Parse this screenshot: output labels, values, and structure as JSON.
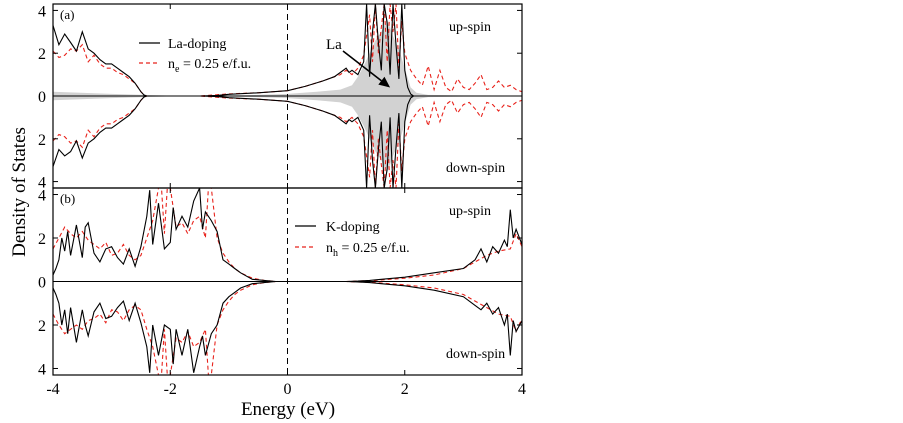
{
  "figure": {
    "ylabel": "Density of States",
    "xlabel": "Energy (eV)",
    "x_ticks": [
      "-4",
      "-2",
      "0",
      "2",
      "4"
    ],
    "fermi_level": 0
  },
  "chart_data": [
    {
      "type": "line",
      "panel_label": "(a)",
      "xlim": [
        -4,
        4
      ],
      "ylim": [
        -4.3,
        4.3
      ],
      "y_ticks": [
        {
          "value": 4,
          "label": "4"
        },
        {
          "value": 2,
          "label": "2"
        },
        {
          "value": 0,
          "label": "0"
        },
        {
          "value": -2,
          "label": "2"
        },
        {
          "value": -4,
          "label": "4"
        }
      ],
      "legend": [
        {
          "label": "La-doping",
          "style": "solid",
          "color": "#000000"
        },
        {
          "label_main": "n",
          "label_sub": "e",
          "label_rest": " = 0.25 e/f.u.",
          "style": "dashed",
          "color": "#e8231c"
        }
      ],
      "annotations": {
        "arrow_label": "La",
        "arrow_target": [
          1.75,
          0.4
        ],
        "top_right": "up-spin",
        "bottom_right": "down-spin"
      },
      "shaded_La_pdos": {
        "x": [
          -4.0,
          -3.0,
          -2.0,
          -1.0,
          -0.5,
          0.0,
          0.5,
          0.9,
          1.1,
          1.2,
          1.3,
          1.4,
          1.5,
          1.6,
          1.7,
          1.8,
          1.9,
          2.0,
          2.1,
          2.2,
          2.4,
          3.0,
          4.0
        ],
        "y": [
          0.2,
          0.1,
          0.02,
          0.03,
          0.05,
          0.1,
          0.2,
          0.3,
          0.5,
          0.9,
          1.4,
          2.0,
          2.6,
          3.0,
          3.6,
          2.8,
          2.2,
          1.3,
          0.4,
          0.15,
          0.05,
          0.03,
          0.02
        ]
      },
      "series": [
        {
          "name": "La-doping",
          "style": "solid",
          "color": "#000000",
          "x": [
            -4.0,
            -3.9,
            -3.8,
            -3.7,
            -3.6,
            -3.5,
            -3.4,
            -3.3,
            -3.2,
            -3.1,
            -3.0,
            -2.9,
            -2.8,
            -2.7,
            -2.6,
            -2.55,
            -2.5,
            -2.45,
            -2.4,
            -2.3,
            -2.0,
            -1.5,
            -1.2,
            -1.0,
            -0.5,
            0.0,
            0.3,
            0.6,
            0.8,
            0.9,
            1.0,
            1.05,
            1.1,
            1.2,
            1.3,
            1.35,
            1.4,
            1.45,
            1.5,
            1.55,
            1.6,
            1.65,
            1.7,
            1.75,
            1.8,
            1.85,
            1.9,
            1.95,
            2.0,
            2.05,
            2.1,
            2.15
          ],
          "up": [
            3.3,
            2.4,
            2.9,
            2.5,
            2.1,
            3.0,
            2.2,
            2.0,
            1.7,
            1.5,
            1.5,
            1.3,
            1.1,
            0.9,
            0.6,
            0.4,
            0.2,
            0.05,
            0.0,
            0.0,
            0.0,
            0.0,
            0.03,
            0.08,
            0.15,
            0.25,
            0.45,
            0.7,
            0.9,
            1.1,
            1.3,
            1.1,
            1.2,
            1.0,
            1.6,
            4.3,
            0.9,
            3.0,
            4.3,
            2.5,
            1.2,
            4.3,
            3.4,
            1.0,
            4.3,
            2.4,
            0.8,
            4.3,
            1.2,
            0.4,
            0.1,
            0.0
          ],
          "down": [
            3.3,
            2.5,
            2.8,
            2.6,
            2.1,
            2.9,
            2.2,
            2.0,
            1.7,
            1.5,
            1.5,
            1.3,
            1.1,
            0.9,
            0.6,
            0.4,
            0.2,
            0.05,
            0.0,
            0.0,
            0.0,
            0.0,
            0.03,
            0.08,
            0.15,
            0.25,
            0.45,
            0.7,
            0.9,
            1.1,
            1.3,
            1.1,
            1.2,
            1.0,
            1.6,
            4.3,
            0.9,
            3.0,
            4.3,
            2.5,
            1.2,
            4.3,
            3.4,
            1.0,
            4.3,
            2.4,
            0.8,
            4.3,
            1.2,
            0.4,
            0.1,
            0.0
          ]
        },
        {
          "name": "ne = 0.25 e/f.u.",
          "style": "dashed",
          "color": "#e8231c",
          "x": [
            -4.0,
            -3.9,
            -3.8,
            -3.7,
            -3.6,
            -3.5,
            -3.4,
            -3.3,
            -3.2,
            -3.1,
            -3.0,
            -2.9,
            -2.8,
            -2.7,
            -2.6,
            -2.55,
            -2.5,
            -2.45,
            -2.4,
            -2.0,
            -1.5,
            -1.0,
            -0.5,
            0.0,
            0.3,
            0.6,
            0.8,
            0.9,
            1.0,
            1.1,
            1.2,
            1.3,
            1.4,
            1.45,
            1.5,
            1.55,
            1.6,
            1.65,
            1.7,
            1.75,
            1.8,
            1.85,
            1.9,
            1.95,
            2.0,
            2.1,
            2.2,
            2.3,
            2.4,
            2.5,
            2.6,
            2.7,
            2.8,
            2.9,
            3.0,
            3.1,
            3.2,
            3.3,
            3.4,
            3.5,
            3.6,
            3.7,
            3.8,
            3.9,
            4.0
          ],
          "up": [
            2.1,
            1.8,
            1.9,
            2.2,
            2.1,
            2.4,
            1.6,
            1.9,
            1.5,
            1.3,
            1.3,
            1.1,
            1.0,
            0.8,
            0.6,
            0.4,
            0.2,
            0.05,
            0.0,
            0.0,
            0.0,
            0.1,
            0.15,
            0.25,
            0.45,
            0.7,
            0.9,
            1.0,
            1.2,
            1.0,
            1.3,
            1.9,
            3.8,
            1.6,
            4.3,
            2.0,
            3.2,
            4.3,
            1.6,
            4.3,
            3.0,
            4.3,
            1.3,
            3.5,
            2.0,
            1.2,
            0.8,
            0.5,
            1.4,
            0.3,
            1.2,
            0.4,
            0.2,
            0.8,
            0.4,
            0.3,
            0.6,
            1.0,
            0.3,
            0.4,
            0.7,
            0.4,
            0.5,
            0.3,
            0.2
          ],
          "down": [
            2.1,
            1.8,
            1.9,
            2.2,
            2.1,
            2.4,
            1.6,
            1.9,
            1.5,
            1.3,
            1.3,
            1.1,
            1.0,
            0.8,
            0.6,
            0.4,
            0.2,
            0.05,
            0.0,
            0.0,
            0.0,
            0.1,
            0.15,
            0.25,
            0.45,
            0.7,
            0.9,
            1.0,
            1.2,
            1.0,
            1.3,
            1.9,
            3.8,
            1.6,
            4.3,
            2.0,
            3.2,
            4.3,
            1.6,
            4.3,
            3.0,
            4.3,
            1.3,
            3.5,
            2.0,
            1.2,
            0.8,
            0.5,
            1.4,
            0.3,
            1.2,
            0.4,
            0.2,
            0.8,
            0.4,
            0.3,
            0.6,
            1.0,
            0.3,
            0.4,
            0.7,
            0.4,
            0.5,
            0.3,
            0.2
          ]
        }
      ]
    },
    {
      "type": "line",
      "panel_label": "(b)",
      "xlim": [
        -4,
        4
      ],
      "ylim": [
        -4.3,
        4.3
      ],
      "y_ticks": [
        {
          "value": 4,
          "label": "4"
        },
        {
          "value": 2,
          "label": "2"
        },
        {
          "value": 0,
          "label": "0"
        },
        {
          "value": -2,
          "label": "2"
        },
        {
          "value": -4,
          "label": "4"
        }
      ],
      "legend": [
        {
          "label": "K-doping",
          "style": "solid",
          "color": "#000000"
        },
        {
          "label_main": "n",
          "label_sub": "h",
          "label_rest": " = 0.25 e/f.u.",
          "style": "dashed",
          "color": "#e8231c"
        }
      ],
      "annotations": {
        "top_right": "up-spin",
        "bottom_right": "down-spin"
      },
      "series": [
        {
          "name": "K-doping",
          "style": "solid",
          "color": "#000000",
          "x": [
            -4.0,
            -3.95,
            -3.9,
            -3.85,
            -3.8,
            -3.75,
            -3.7,
            -3.6,
            -3.5,
            -3.45,
            -3.4,
            -3.3,
            -3.2,
            -3.1,
            -3.0,
            -2.9,
            -2.8,
            -2.7,
            -2.6,
            -2.5,
            -2.4,
            -2.35,
            -2.3,
            -2.2,
            -2.1,
            -2.0,
            -1.95,
            -1.9,
            -1.8,
            -1.7,
            -1.6,
            -1.5,
            -1.45,
            -1.4,
            -1.3,
            -1.2,
            -1.1,
            -1.0,
            -0.9,
            -0.8,
            -0.6,
            -0.4,
            -0.2,
            0.0,
            0.5,
            1.0,
            1.2,
            1.4,
            1.6,
            2.0,
            2.5,
            3.0,
            3.2,
            3.3,
            3.4,
            3.5,
            3.6,
            3.7,
            3.75,
            3.8,
            3.85,
            3.9,
            4.0
          ],
          "up": [
            0.3,
            0.6,
            1.0,
            2.0,
            1.4,
            2.3,
            1.2,
            2.6,
            1.1,
            2.5,
            2.7,
            1.3,
            0.9,
            1.5,
            1.6,
            1.1,
            0.8,
            1.5,
            0.7,
            1.6,
            3.0,
            4.2,
            1.7,
            3.6,
            1.5,
            1.8,
            3.4,
            2.4,
            3.0,
            2.5,
            3.7,
            4.3,
            2.4,
            3.2,
            2.8,
            2.3,
            1.0,
            0.8,
            0.6,
            0.4,
            0.1,
            0.05,
            0.0,
            0.0,
            0.0,
            0.0,
            0.02,
            0.05,
            0.1,
            0.2,
            0.4,
            0.6,
            1.0,
            1.5,
            0.9,
            1.6,
            1.3,
            1.9,
            1.6,
            3.3,
            2.0,
            2.4,
            1.7
          ],
          "down": [
            0.3,
            0.6,
            1.0,
            2.0,
            1.3,
            2.4,
            1.2,
            2.8,
            1.3,
            2.0,
            2.5,
            1.4,
            1.0,
            1.7,
            1.6,
            1.2,
            0.9,
            1.8,
            1.0,
            1.9,
            3.0,
            4.2,
            2.0,
            3.4,
            2.0,
            2.2,
            3.8,
            2.2,
            3.4,
            2.2,
            4.2,
            3.0,
            2.5,
            3.4,
            2.4,
            2.0,
            1.0,
            0.7,
            0.5,
            0.3,
            0.1,
            0.05,
            0.0,
            0.0,
            0.0,
            0.0,
            0.02,
            0.05,
            0.1,
            0.2,
            0.4,
            0.7,
            1.1,
            1.3,
            1.0,
            1.5,
            1.2,
            2.0,
            1.5,
            3.4,
            1.8,
            2.3,
            1.8
          ]
        },
        {
          "name": "nh = 0.25 e/f.u.",
          "style": "dashed",
          "color": "#e8231c",
          "x": [
            -4.0,
            -3.9,
            -3.8,
            -3.7,
            -3.6,
            -3.5,
            -3.4,
            -3.3,
            -3.2,
            -3.1,
            -3.0,
            -2.9,
            -2.8,
            -2.7,
            -2.6,
            -2.5,
            -2.4,
            -2.3,
            -2.2,
            -2.15,
            -2.1,
            -2.05,
            -2.0,
            -1.9,
            -1.8,
            -1.7,
            -1.6,
            -1.5,
            -1.4,
            -1.35,
            -1.3,
            -1.2,
            -1.1,
            -1.0,
            -0.9,
            -0.8,
            -0.6,
            -0.4,
            -0.2,
            0.0,
            0.5,
            1.0,
            1.5,
            2.0,
            2.5,
            3.0,
            3.2,
            3.4,
            3.6,
            3.8,
            3.9,
            4.0
          ],
          "up": [
            1.5,
            2.0,
            2.5,
            2.2,
            2.0,
            2.3,
            1.9,
            1.7,
            1.5,
            1.8,
            1.2,
            1.3,
            1.7,
            1.2,
            1.0,
            1.2,
            2.0,
            2.8,
            4.3,
            4.3,
            2.2,
            4.3,
            4.3,
            2.5,
            2.7,
            2.2,
            2.8,
            3.0,
            2.0,
            4.3,
            4.3,
            2.0,
            1.3,
            0.9,
            0.6,
            0.4,
            0.15,
            0.05,
            0.0,
            0.0,
            0.0,
            0.0,
            0.05,
            0.15,
            0.3,
            0.6,
            0.9,
            1.2,
            1.4,
            1.5,
            2.2,
            1.6
          ],
          "down": [
            1.5,
            2.0,
            2.4,
            2.2,
            2.0,
            2.2,
            1.8,
            1.7,
            1.5,
            1.9,
            1.3,
            1.4,
            1.8,
            1.3,
            1.1,
            1.3,
            2.2,
            3.0,
            4.3,
            4.3,
            2.2,
            4.3,
            4.3,
            2.6,
            2.8,
            2.3,
            3.0,
            2.8,
            2.2,
            4.3,
            4.3,
            2.0,
            1.3,
            0.9,
            0.6,
            0.4,
            0.15,
            0.05,
            0.0,
            0.0,
            0.0,
            0.0,
            0.05,
            0.15,
            0.3,
            0.6,
            0.9,
            1.2,
            1.5,
            1.6,
            2.3,
            1.7
          ]
        }
      ]
    }
  ]
}
